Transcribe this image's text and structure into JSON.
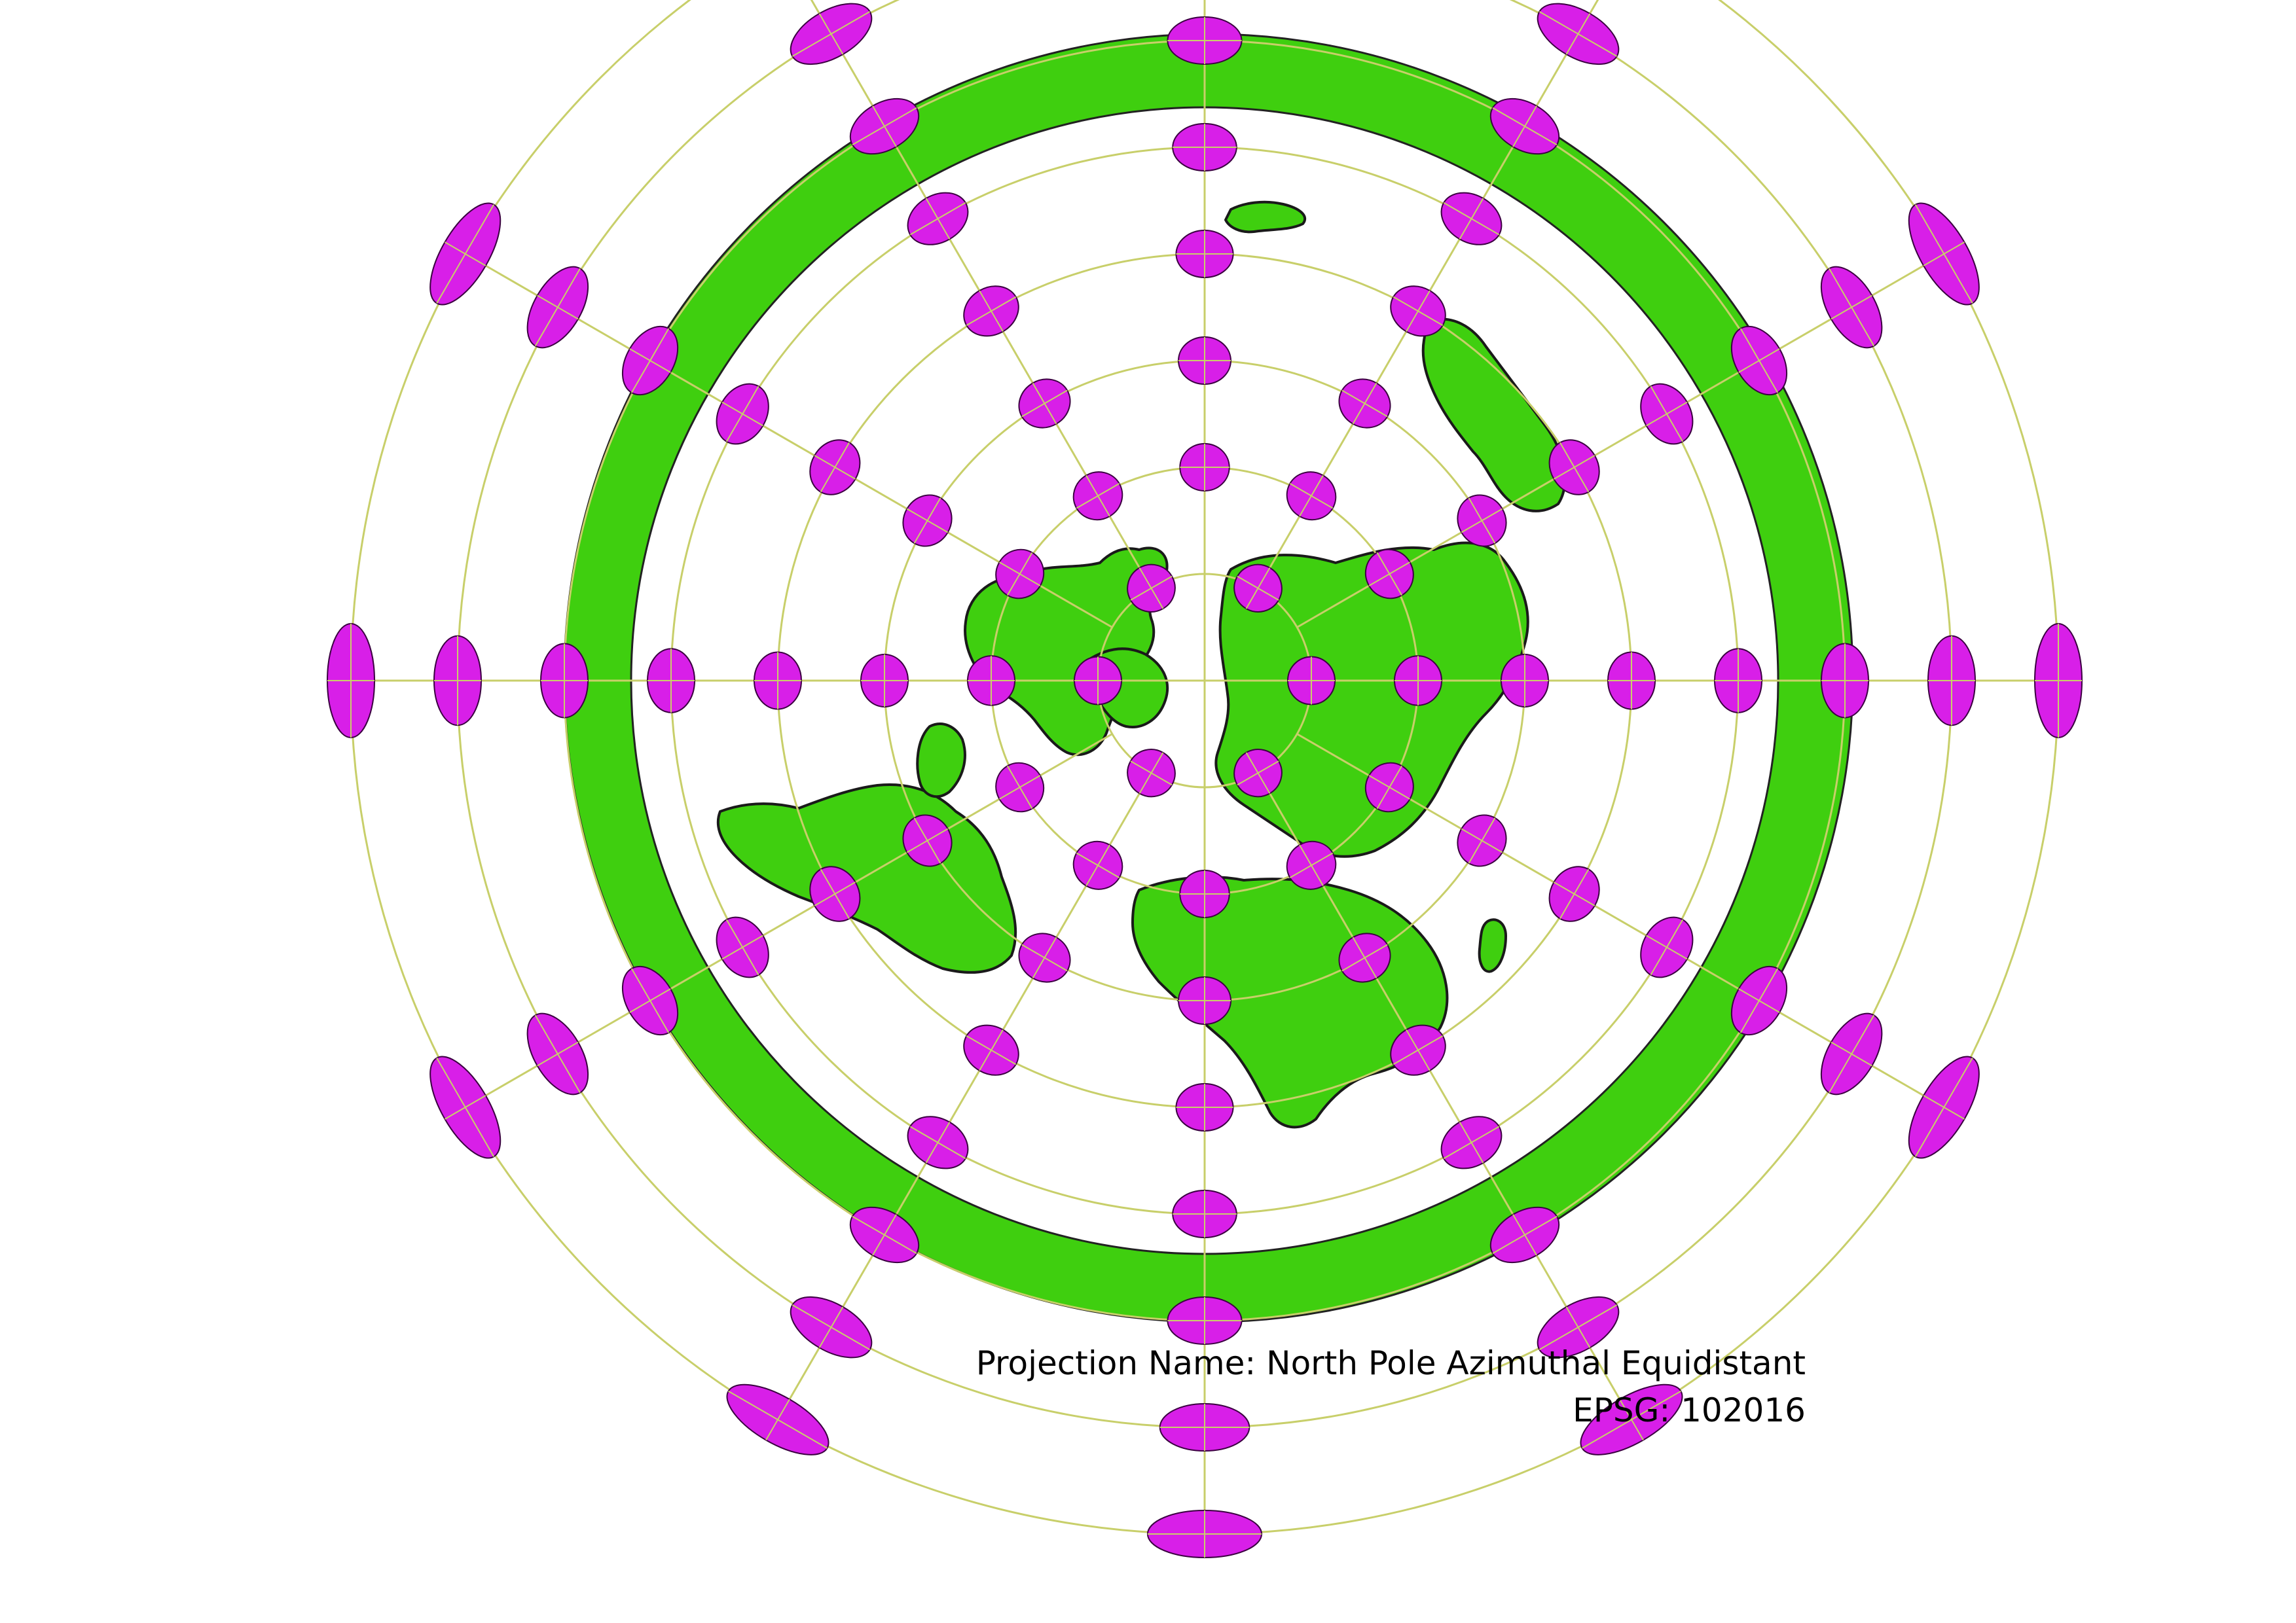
{
  "caption": {
    "projection_line": "Projection Name: North Pole Azimuthal Equidistant",
    "epsg_line": "EPSG: 102016"
  },
  "colors": {
    "land": "#3fcf0f",
    "ring": "#3fcf0f",
    "coastline": "#1a1a1a",
    "indicatrix_fill": "#d81fe8",
    "indicatrix_stroke": "#3a0040",
    "graticule": "#c8cf6a",
    "ocean": "#ffffff"
  },
  "map": {
    "projection": "azimuthal-equidistant-north-pole",
    "graticule_latitudes_deg": [
      75,
      60,
      45,
      30,
      15,
      0,
      -15,
      -30
    ],
    "graticule_meridian_step_deg": 30,
    "tissot_rings": [
      {
        "lat": 75,
        "count": 6
      },
      {
        "lat": 60,
        "count": 12
      },
      {
        "lat": 45,
        "count": 12
      },
      {
        "lat": 30,
        "count": 12
      },
      {
        "lat": 15,
        "count": 12
      },
      {
        "lat": 0,
        "count": 12
      },
      {
        "lat": -15,
        "count": 12
      },
      {
        "lat": -30,
        "count": 12
      }
    ]
  }
}
